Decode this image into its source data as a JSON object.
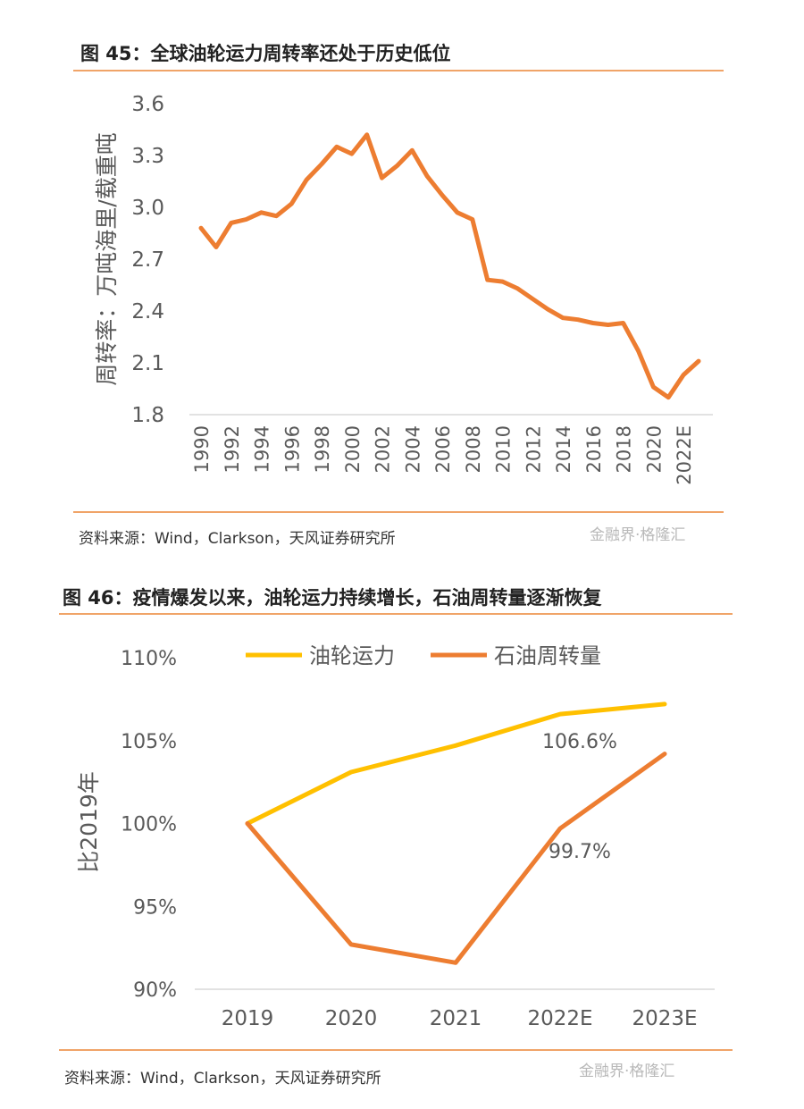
{
  "figure1": {
    "title": "图 45：全球油轮运力周转率还处于历史低位",
    "source": "资料来源：Wind，Clarkson，天风证券研究所",
    "watermark": "金融界·格隆汇"
  },
  "figure2": {
    "title": "图 46：疫情爆发以来，油轮运力持续增长，石油周转量逐渐恢复",
    "source": "资料来源：Wind，Clarkson，天风证券研究所",
    "watermark": "金融界·格隆汇"
  },
  "colors": {
    "orange": "#ed7d31",
    "yellow": "#ffc000",
    "rule": "#f0a468"
  },
  "chart_data": [
    {
      "type": "line",
      "title": "图 45：全球油轮运力周转率还处于历史低位",
      "xlabel": "",
      "ylabel": "周转率：万吨海里/载重吨",
      "ylim": [
        1.8,
        3.6
      ],
      "yticks": [
        "3.6",
        "3.3",
        "3.0",
        "2.7",
        "2.4",
        "2.1",
        "1.8"
      ],
      "xticks": [
        "1990",
        "1992",
        "1994",
        "1996",
        "1998",
        "2000",
        "2002",
        "2004",
        "2006",
        "2008",
        "2010",
        "2012",
        "2014",
        "2016",
        "2018",
        "2020",
        "2022E"
      ],
      "x": [
        1990,
        1991,
        1992,
        1993,
        1994,
        1995,
        1996,
        1997,
        1998,
        1999,
        2000,
        2001,
        2002,
        2003,
        2004,
        2005,
        2006,
        2007,
        2008,
        2009,
        2010,
        2011,
        2012,
        2013,
        2014,
        2015,
        2016,
        2017,
        2018,
        2019,
        2020,
        2021,
        2022,
        2023
      ],
      "series": [
        {
          "values": [
            2.88,
            2.77,
            2.91,
            2.93,
            2.97,
            2.95,
            3.02,
            3.16,
            3.25,
            3.35,
            3.31,
            3.42,
            3.17,
            3.24,
            3.33,
            3.18,
            3.07,
            2.97,
            2.93,
            2.58,
            2.57,
            2.53,
            2.47,
            2.41,
            2.36,
            2.35,
            2.33,
            2.32,
            2.33,
            2.17,
            1.96,
            1.9,
            2.03,
            2.11
          ]
        }
      ],
      "grid": false
    },
    {
      "type": "line",
      "title": "图 46：疫情爆发以来，油轮运力持续增长，石油周转量逐渐恢复",
      "xlabel": "",
      "ylabel": "比2019年",
      "ylim": [
        90,
        110
      ],
      "yticks": [
        "110%",
        "105%",
        "100%",
        "95%",
        "90%"
      ],
      "categories": [
        "2019",
        "2020",
        "2021",
        "2022E",
        "2023E"
      ],
      "series": [
        {
          "name": "油轮运力",
          "color": "#ffc000",
          "values": [
            100,
            103.1,
            104.7,
            106.6,
            107.2
          ]
        },
        {
          "name": "石油周转量",
          "color": "#ed7d31",
          "values": [
            100,
            92.7,
            91.6,
            99.7,
            104.2
          ]
        }
      ],
      "annotations": [
        {
          "text": "106.6%",
          "category": "2022E",
          "value": 106.6
        },
        {
          "text": "99.7%",
          "category": "2022E",
          "value": 99.7
        }
      ],
      "legend": "top",
      "grid": false
    }
  ]
}
